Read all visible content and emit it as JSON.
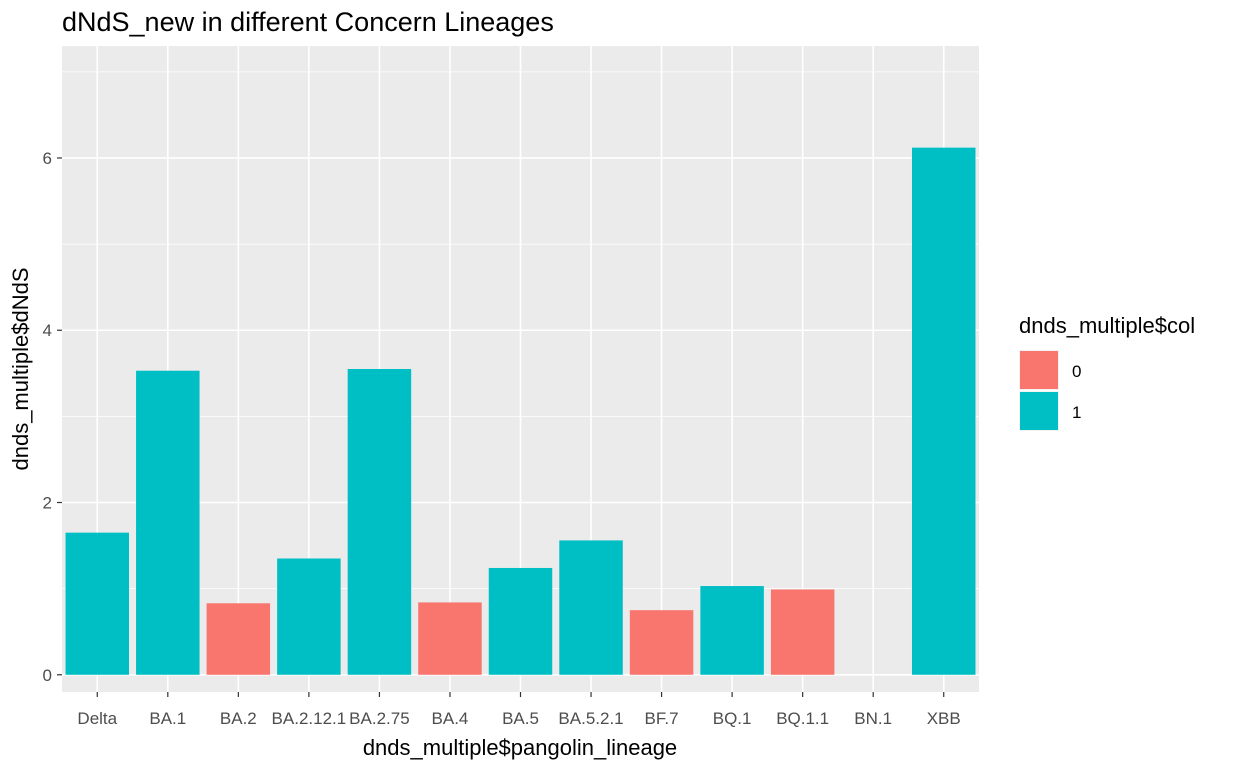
{
  "chart_data": {
    "type": "bar",
    "title": "dNdS_new in different Concern Lineages",
    "xlabel": "dnds_multiple$pangolin_lineage",
    "ylabel": "dnds_multiple$dNdS",
    "categories": [
      "Delta",
      "BA.1",
      "BA.2",
      "BA.2.12.1",
      "BA.2.75",
      "BA.4",
      "BA.5",
      "BA.5.2.1",
      "BF.7",
      "BQ.1",
      "BQ.1.1",
      "BN.1",
      "XBB"
    ],
    "values": [
      1.65,
      3.53,
      0.83,
      1.35,
      3.55,
      0.84,
      1.24,
      1.56,
      0.75,
      1.03,
      0.99,
      0,
      6.12
    ],
    "groups": [
      "1",
      "1",
      "0",
      "1",
      "1",
      "0",
      "1",
      "1",
      "0",
      "1",
      "0",
      "1",
      "1"
    ],
    "ylim": [
      -0.2,
      7.3
    ],
    "yticks": [
      0,
      2,
      4,
      6
    ],
    "grid": true,
    "legend": {
      "title": "dnds_multiple$col",
      "position": "right",
      "entries": [
        {
          "label": "0",
          "color": "#F8766D"
        },
        {
          "label": "1",
          "color": "#00BFC4"
        }
      ]
    },
    "colors": {
      "0": "#F8766D",
      "1": "#00BFC4",
      "panel": "#EBEBEB"
    }
  }
}
